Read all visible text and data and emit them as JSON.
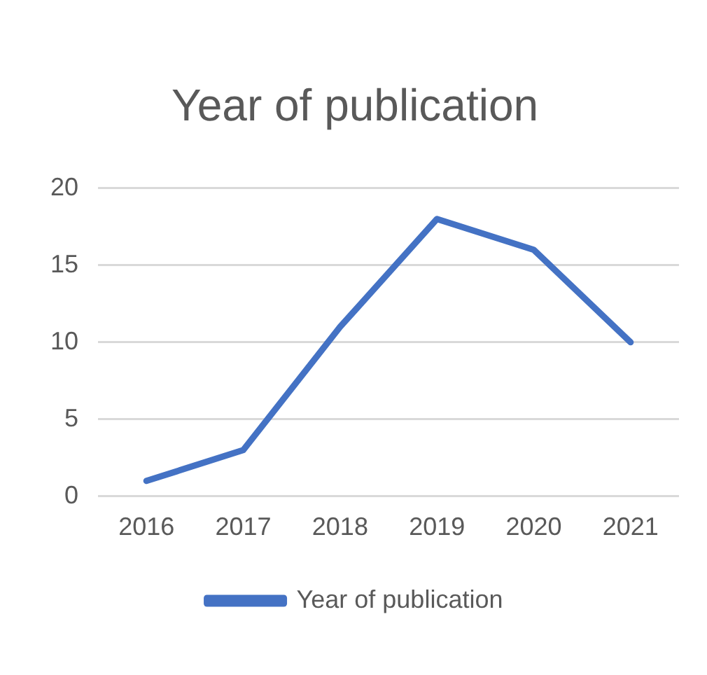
{
  "chart_data": {
    "type": "line",
    "title": "Year of publication",
    "categories": [
      "2016",
      "2017",
      "2018",
      "2019",
      "2020",
      "2021"
    ],
    "series": [
      {
        "name": "Year of publication",
        "color": "#4472c4",
        "values": [
          1,
          3,
          11,
          18,
          16,
          10
        ]
      }
    ],
    "ylim": [
      0,
      20
    ],
    "yticks": [
      0,
      5,
      10,
      15,
      20
    ],
    "grid": "y",
    "legend": "bottom",
    "marker": "none",
    "line_style": "solid"
  }
}
